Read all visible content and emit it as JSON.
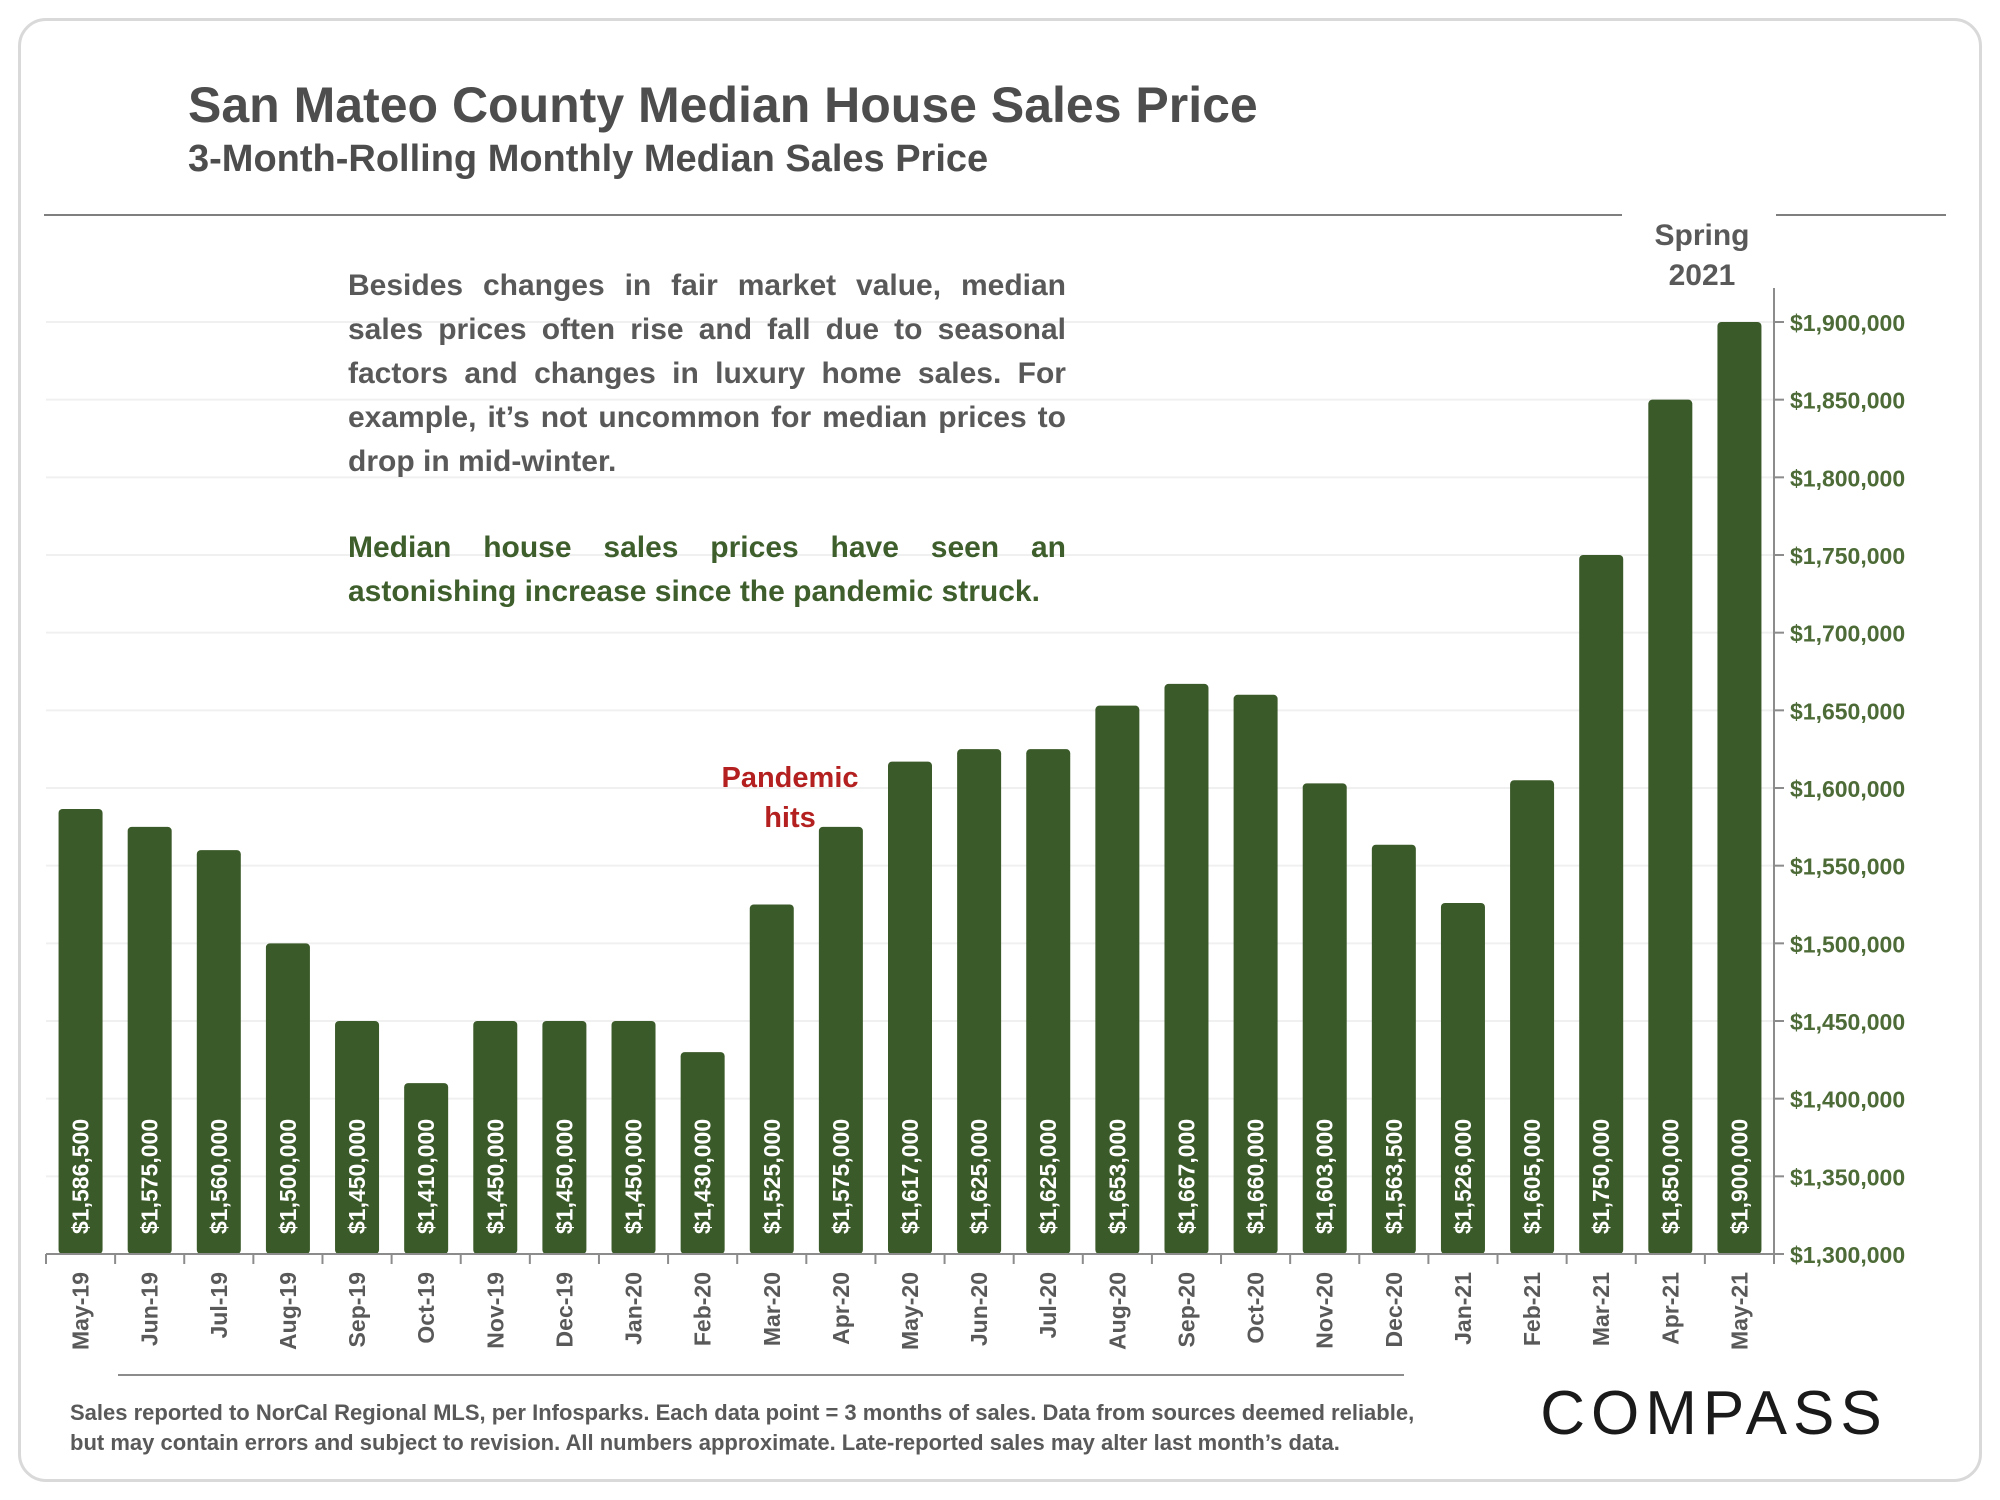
{
  "title": "San Mateo County Median House Sales Price",
  "subtitle": "3-Month-Rolling Monthly Median Sales Price",
  "annotation_spring": {
    "line1": "Spring",
    "line2": "2021"
  },
  "annotation_pandemic": {
    "line1": "Pandemic",
    "line2": "hits"
  },
  "note": {
    "paragraph1": "Besides changes in fair market value, median sales prices often rise and fall due to seasonal factors and changes in luxury home sales. For example, it’s not uncommon for median prices to drop in mid-winter.",
    "paragraph2": "Median house sales prices have seen an astonishing increase since the pandemic struck."
  },
  "source_line1": "Sales reported to NorCal Regional MLS, per Infosparks. Each data point = 3 months of sales. Data from sources deemed reliable,",
  "source_line2": "but may contain errors and subject to revision. All numbers approximate. Late-reported sales may alter last month’s data.",
  "logo_text": "COMPASS",
  "colors": {
    "bar": "#3b5a29",
    "bar_label": "#ffffff",
    "axis_text": "#4d6b37",
    "pandemic": "#b3201f",
    "text": "#4d4d4d"
  },
  "chart_data": {
    "type": "bar",
    "categories": [
      "May-19",
      "Jun-19",
      "Jul-19",
      "Aug-19",
      "Sep-19",
      "Oct-19",
      "Nov-19",
      "Dec-19",
      "Jan-20",
      "Feb-20",
      "Mar-20",
      "Apr-20",
      "May-20",
      "Jun-20",
      "Jul-20",
      "Aug-20",
      "Sep-20",
      "Oct-20",
      "Nov-20",
      "Dec-20",
      "Jan-21",
      "Feb-21",
      "Mar-21",
      "Apr-21",
      "May-21"
    ],
    "values": [
      1586500,
      1575000,
      1560000,
      1500000,
      1450000,
      1410000,
      1450000,
      1450000,
      1450000,
      1430000,
      1525000,
      1575000,
      1617000,
      1625000,
      1625000,
      1653000,
      1667000,
      1660000,
      1603000,
      1563500,
      1526000,
      1605000,
      1750000,
      1850000,
      1900000
    ],
    "value_labels": [
      "$1,586,500",
      "$1,575,000",
      "$1,560,000",
      "$1,500,000",
      "$1,450,000",
      "$1,410,000",
      "$1,450,000",
      "$1,450,000",
      "$1,450,000",
      "$1,430,000",
      "$1,525,000",
      "$1,575,000",
      "$1,617,000",
      "$1,625,000",
      "$1,625,000",
      "$1,653,000",
      "$1,667,000",
      "$1,660,000",
      "$1,603,000",
      "$1,563,500",
      "$1,526,000",
      "$1,605,000",
      "$1,750,000",
      "$1,850,000",
      "$1,900,000"
    ],
    "ylim": [
      1300000,
      1900000
    ],
    "yticks": [
      1300000,
      1350000,
      1400000,
      1450000,
      1500000,
      1550000,
      1600000,
      1650000,
      1700000,
      1750000,
      1800000,
      1850000,
      1900000
    ],
    "ytick_labels": [
      "$1,300,000",
      "$1,350,000",
      "$1,400,000",
      "$1,450,000",
      "$1,500,000",
      "$1,550,000",
      "$1,600,000",
      "$1,650,000",
      "$1,700,000",
      "$1,750,000",
      "$1,800,000",
      "$1,850,000",
      "$1,900,000"
    ],
    "y_axis_side": "right",
    "grid": true,
    "legend": "none",
    "xlabel": "",
    "ylabel": ""
  }
}
